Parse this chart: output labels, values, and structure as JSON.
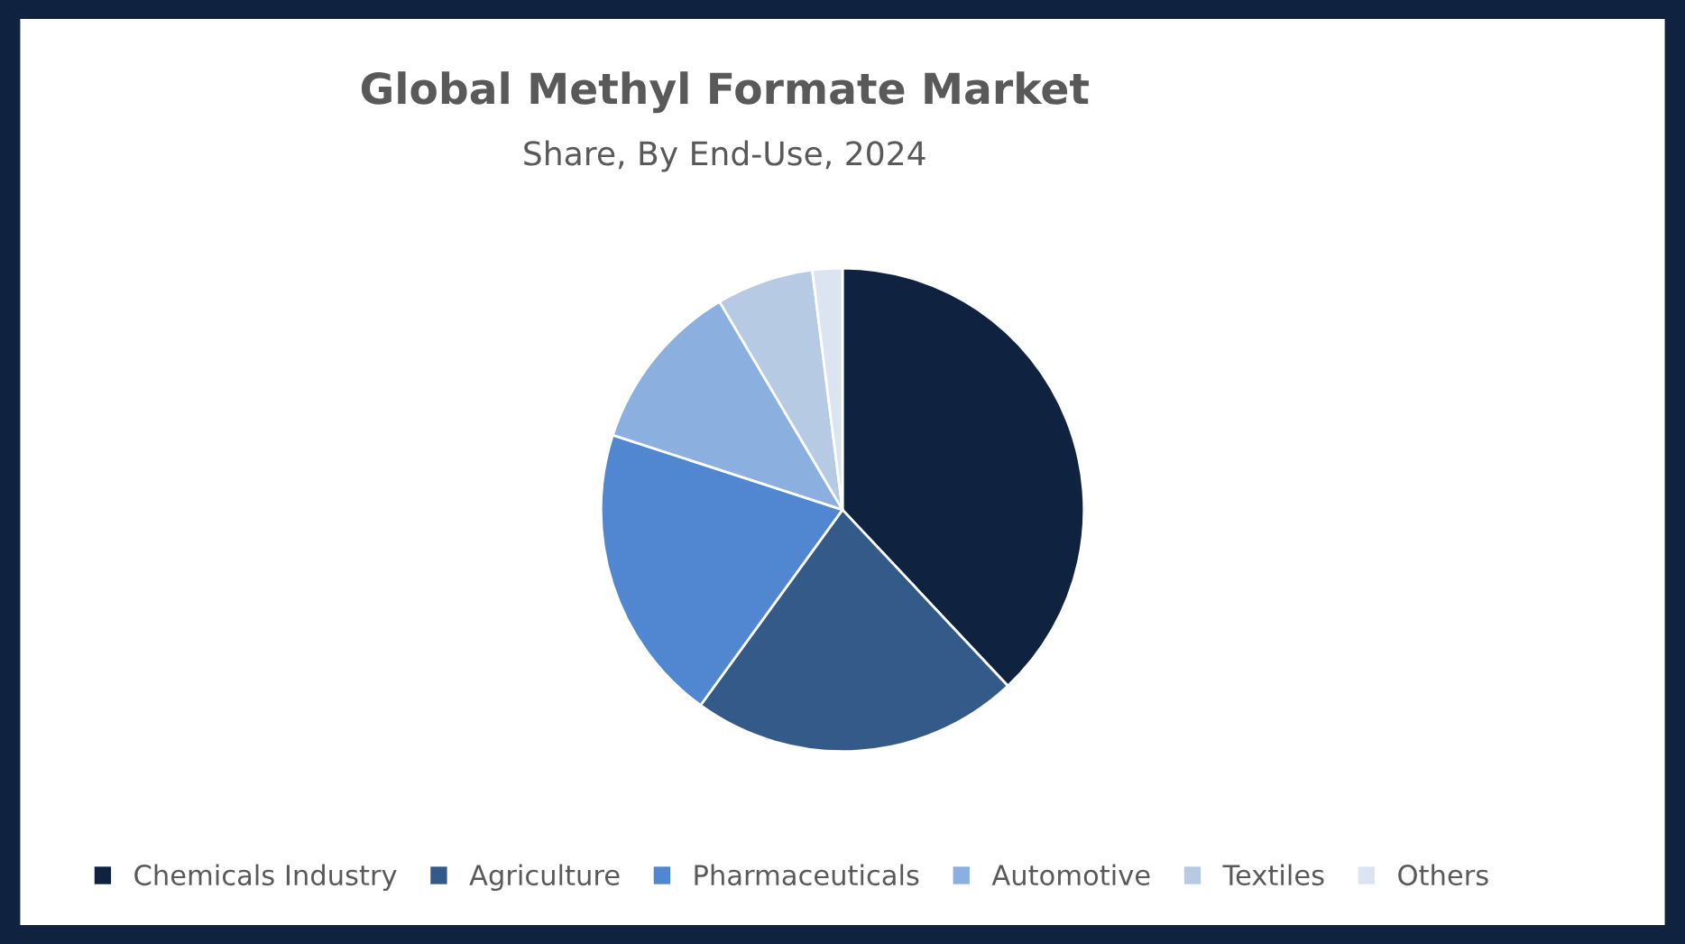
{
  "chart_data": {
    "type": "pie",
    "title": "Global Methyl Formate Market",
    "subtitle": "Share, By End-Use, 2024",
    "categories": [
      "Chemicals Industry",
      "Agriculture",
      "Pharmaceuticals",
      "Automotive",
      "Textiles",
      "Others"
    ],
    "values": [
      38,
      22,
      20,
      11.5,
      6.5,
      2
    ],
    "colors": [
      "#0f2340",
      "#345a8a",
      "#5087d0",
      "#8bb0e0",
      "#b6cbe3",
      "#dbe4f0"
    ],
    "legend": "bottom"
  }
}
